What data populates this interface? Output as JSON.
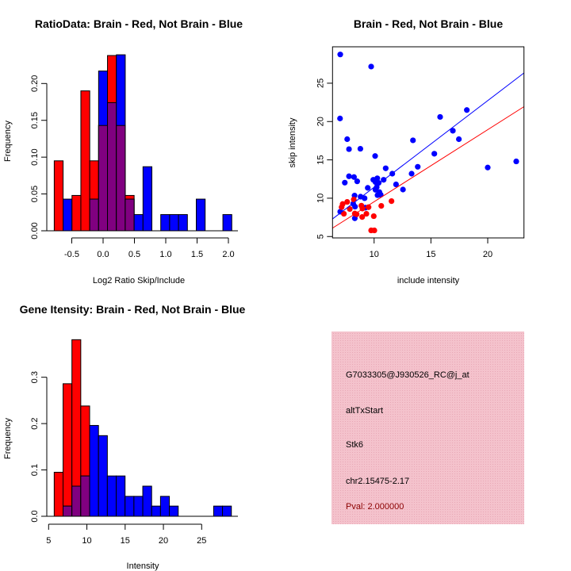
{
  "chart_data": [
    {
      "type": "bar",
      "subtype": "overlaid-histogram",
      "title": "RatioData: Brain - Red, Not Brain - Blue",
      "xlabel": "Log2 Ratio Skip/Include",
      "ylabel": "Frequency",
      "xticks": [
        -0.5,
        0.0,
        0.5,
        1.0,
        1.5,
        2.0
      ],
      "xtick_labels": [
        "-0.5",
        "0.0",
        "0.5",
        "1.0",
        "1.5",
        "2.0"
      ],
      "yticks": [
        0,
        0.05,
        0.1,
        0.15,
        0.2
      ],
      "ytick_labels": [
        "0.00",
        "0.05",
        "0.10",
        "0.15",
        "0.20"
      ],
      "bin_start": -0.78,
      "bin_width": 0.1417,
      "series": [
        {
          "name": "Brain",
          "color": "#ff0000",
          "values": [
            0.095,
            0,
            0.048,
            0.19,
            0.095,
            0.143,
            0.238,
            0.143,
            0.048,
            0,
            0,
            0,
            0,
            0,
            0,
            0,
            0,
            0,
            0,
            0
          ]
        },
        {
          "name": "Not Brain",
          "color": "#0000ff",
          "values": [
            0,
            0.043,
            0,
            0,
            0.043,
            0.217,
            0.174,
            0.239,
            0.043,
            0.022,
            0.087,
            0,
            0.022,
            0.022,
            0.022,
            0,
            0.043,
            0,
            0,
            0.022
          ]
        }
      ],
      "overlap_color": "#800080"
    },
    {
      "type": "scatter",
      "title": "Brain - Red, Not Brain - Blue",
      "xlabel": "include intensity",
      "ylabel": "skip intensity",
      "xlim": [
        6.34,
        23.19
      ],
      "ylim": [
        4.82,
        29.75
      ],
      "xticks": [
        10,
        15,
        20
      ],
      "yticks": [
        5,
        10,
        15,
        20,
        25
      ],
      "series": [
        {
          "name": "Not Brain",
          "color": "#0000ff",
          "fit_line": {
            "intercept": 0.13,
            "slope": 1.13
          },
          "points": [
            [
              7.02,
              28.75
            ],
            [
              9.74,
              27.17
            ],
            [
              7.0,
              20.4
            ],
            [
              7.63,
              17.7
            ],
            [
              7.79,
              16.4
            ],
            [
              8.79,
              16.45
            ],
            [
              10.09,
              15.5
            ],
            [
              11.02,
              13.9
            ],
            [
              11.6,
              13.2
            ],
            [
              7.79,
              12.86
            ],
            [
              8.23,
              12.76
            ],
            [
              7.42,
              12.03
            ],
            [
              8.51,
              12.2
            ],
            [
              9.93,
              12.4
            ],
            [
              10.28,
              12.6
            ],
            [
              10.12,
              12.1
            ],
            [
              10.4,
              12.0
            ],
            [
              10.84,
              12.4
            ],
            [
              11.93,
              11.8
            ],
            [
              12.54,
              11.13
            ],
            [
              9.44,
              11.35
            ],
            [
              10.12,
              11.1
            ],
            [
              10.23,
              11.45
            ],
            [
              10.46,
              10.8
            ],
            [
              10.58,
              10.45
            ],
            [
              10.3,
              10.4
            ],
            [
              8.28,
              10.34
            ],
            [
              8.81,
              10.2
            ],
            [
              9.16,
              10.0
            ],
            [
              13.3,
              13.2
            ],
            [
              13.84,
              14.1
            ],
            [
              13.42,
              17.55
            ],
            [
              15.3,
              15.8
            ],
            [
              15.81,
              20.6
            ],
            [
              16.93,
              18.8
            ],
            [
              17.46,
              17.7
            ],
            [
              18.16,
              21.5
            ],
            [
              20.0,
              14.0
            ],
            [
              22.51,
              14.8
            ],
            [
              7.02,
              8.24
            ],
            [
              8.16,
              9.27
            ],
            [
              8.32,
              8.9
            ],
            [
              8.3,
              7.38
            ],
            [
              9.23,
              8.76
            ]
          ]
        },
        {
          "name": "Brain",
          "color": "#ff0000",
          "fit_line": {
            "intercept": 0.14,
            "slope": 0.94
          },
          "points": [
            [
              7.14,
              8.83
            ],
            [
              7.23,
              9.24
            ],
            [
              7.63,
              9.52
            ],
            [
              7.86,
              8.59
            ],
            [
              7.34,
              7.97
            ],
            [
              8.21,
              9.83
            ],
            [
              8.3,
              8.0
            ],
            [
              8.46,
              7.9
            ],
            [
              8.88,
              9.03
            ],
            [
              8.97,
              8.65
            ],
            [
              8.95,
              7.55
            ],
            [
              9.32,
              7.97
            ],
            [
              9.51,
              8.83
            ],
            [
              9.97,
              7.66
            ],
            [
              10.63,
              9.0
            ],
            [
              11.53,
              9.62
            ],
            [
              9.74,
              5.8
            ],
            [
              10.02,
              5.8
            ]
          ]
        }
      ]
    },
    {
      "type": "bar",
      "subtype": "overlaid-histogram",
      "title": "Gene Itensity: Brain - Red, Not Brain - Blue",
      "xlabel": "Intensity",
      "ylabel": "Frequency",
      "xticks": [
        5,
        10,
        15,
        20,
        25
      ],
      "xtick_labels": [
        "5",
        "10",
        "15",
        "20",
        "25"
      ],
      "yticks": [
        0,
        0.1,
        0.2,
        0.3
      ],
      "ytick_labels": [
        "0.0",
        "0.1",
        "0.2",
        "0.3"
      ],
      "bin_start": 5.73,
      "bin_width": 1.1575,
      "series": [
        {
          "name": "Brain",
          "color": "#ff0000",
          "values": [
            0.095,
            0.286,
            0.381,
            0.238,
            0,
            0,
            0,
            0,
            0,
            0,
            0,
            0,
            0,
            0,
            0,
            0,
            0,
            0,
            0,
            0
          ]
        },
        {
          "name": "Not Brain",
          "color": "#0000ff",
          "values": [
            0,
            0.022,
            0.065,
            0.087,
            0.196,
            0.174,
            0.087,
            0.087,
            0.043,
            0.043,
            0.065,
            0.022,
            0.043,
            0.022,
            0,
            0,
            0,
            0,
            0.022,
            0.022
          ]
        }
      ],
      "overlap_color": "#800080"
    }
  ],
  "info_panel": {
    "background": "#f4c2cc",
    "probe_id": "G7033305@J930526_RC@j_at",
    "event_type": "altTxStart",
    "gene": "Stk6",
    "location": "chr2.15475-2.17",
    "pval": "Pval: 2.000000",
    "pval_color": "#8b0000"
  }
}
